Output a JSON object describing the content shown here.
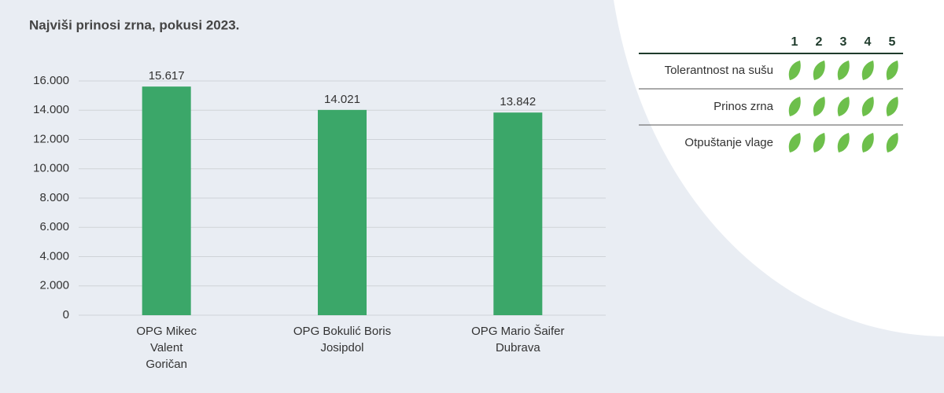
{
  "chart_data": {
    "type": "bar",
    "title": "Najviši prinosi zrna, pokusi 2023.",
    "categories": [
      "OPG Mikec\nValent\nGoričan",
      "OPG Bokulić Boris\nJosipdol",
      "OPG Mario Šaifer\nDubrava"
    ],
    "values": [
      15617,
      14021,
      13842
    ],
    "value_labels": [
      "15.617",
      "14.021",
      "13.842"
    ],
    "color": "#3ba769",
    "ylim": [
      0,
      16000
    ],
    "yticks": [
      0,
      {
        "value": 2000,
        "label": "2.000"
      },
      {
        "value": 4000,
        "label": "4.000"
      },
      {
        "value": 6000,
        "label": "6.000"
      },
      {
        "value": 8000,
        "label": "8.000"
      },
      {
        "value": 10000,
        "label": "10.000"
      },
      {
        "value": 12000,
        "label": "12.000"
      },
      {
        "value": 14000,
        "label": "14.000"
      },
      {
        "value": 16000,
        "label": "16.000"
      }
    ],
    "grid": true
  },
  "ratings": {
    "scale": [
      1,
      2,
      3,
      4,
      5
    ],
    "color": "#6dbf4b",
    "rows": [
      {
        "label": "Tolerantnost na sušu",
        "value": 5
      },
      {
        "label": "Prinos zrna",
        "value": 5
      },
      {
        "label": "Otpuštanje vlage",
        "value": 5
      }
    ]
  }
}
